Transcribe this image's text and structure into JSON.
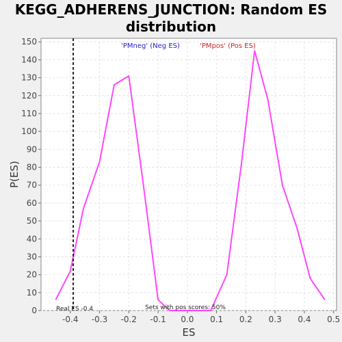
{
  "chart_data": {
    "type": "line",
    "title_line1": "KEGG_ADHERENS_JUNCTION: Random ES",
    "title_line2": "distribution",
    "xlabel": "ES",
    "ylabel": "P(ES)",
    "xlim": [
      -0.5,
      0.51
    ],
    "ylim": [
      0,
      152
    ],
    "x_ticks": [
      -0.4,
      -0.3,
      -0.2,
      -0.1,
      0.0,
      0.1,
      0.2,
      0.3,
      0.4,
      0.5
    ],
    "x_tick_labels": [
      "-0.4",
      "-0.3",
      "-0.2",
      "-0.1",
      "0.0",
      "0.1",
      "0.2",
      "0.3",
      "0.4",
      "0.5"
    ],
    "y_ticks": [
      0,
      10,
      20,
      30,
      40,
      50,
      60,
      70,
      80,
      90,
      100,
      110,
      120,
      130,
      140,
      150
    ],
    "y_tick_labels": [
      "0",
      "10",
      "20",
      "30",
      "40",
      "50",
      "60",
      "70",
      "80",
      "90",
      "100",
      "110",
      "120",
      "130",
      "140",
      "150"
    ],
    "grid": true,
    "series": [
      {
        "color": "#ff44ff",
        "x": [
          -0.45,
          -0.4,
          -0.355,
          -0.3,
          -0.25,
          -0.2,
          -0.15,
          -0.1,
          -0.06,
          -0.02,
          0.03,
          0.08,
          0.135,
          0.185,
          0.23,
          0.275,
          0.325,
          0.375,
          0.42,
          0.47
        ],
        "y": [
          6,
          22,
          57,
          83,
          126,
          131,
          70,
          6,
          0,
          0,
          0,
          0,
          20,
          82,
          145,
          118,
          70,
          46,
          18,
          6
        ]
      }
    ],
    "legend": [
      {
        "label": "'PMneg' (Neg ES)",
        "color": "#2222cc"
      },
      {
        "label": "'PMpos' (Pos ES)",
        "color": "#cc2222"
      }
    ],
    "real_es": {
      "value": -0.39,
      "label": "Real ES -0.4"
    },
    "annotation": "Sets with pos scores: 50%"
  }
}
